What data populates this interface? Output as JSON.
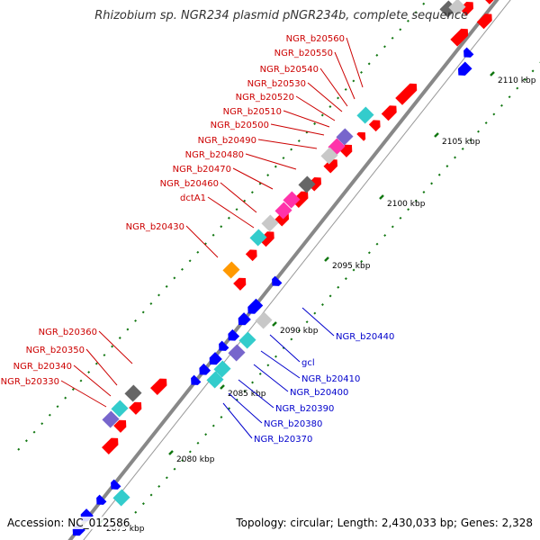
{
  "title": "Rhizobium sp. NGR234 plasmid pNGR234b, complete sequence",
  "footer": {
    "accession": "Accession: NC_012586",
    "summary": "Topology: circular; Length: 2,430,033 bp; Genes: 2,328"
  },
  "colors": {
    "forward": "#ff0000",
    "reverse": "#0000ff",
    "cyan": "#33cccc",
    "gray": "#666666",
    "lightgray": "#c8c8c8",
    "pink": "#ff33aa",
    "purple": "#7766cc",
    "orange": "#ff9900",
    "yellow": "#ffcc33",
    "tick": "#117711",
    "axis": "#888888"
  },
  "kbp_ticks": [
    "2075 kbp",
    "2080 kbp",
    "2085 kbp",
    "2090 kbp",
    "2095 kbp",
    "2100 kbp",
    "2105 kbp",
    "2110 kbp"
  ],
  "labels_top": [
    "NGR_b20560",
    "NGR_b20550",
    "NGR_b20540",
    "NGR_b20530",
    "NGR_b20520",
    "NGR_b20510",
    "NGR_b20500",
    "NGR_b20490",
    "NGR_b20480",
    "NGR_b20470",
    "NGR_b20460",
    "dctA1",
    "NGR_b20430"
  ],
  "labels_left": [
    "NGR_b20360",
    "NGR_b20350",
    "NGR_b20340",
    "NGR_b20330"
  ],
  "labels_right": [
    "NGR_b20440",
    "gcl",
    "NGR_b20410",
    "NGR_b20400",
    "NGR_b20390",
    "NGR_b20380",
    "NGR_b20370"
  ]
}
